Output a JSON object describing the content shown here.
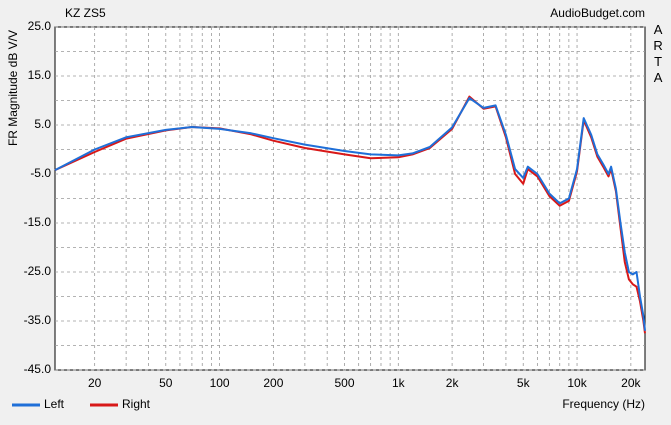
{
  "chart_data": {
    "type": "line",
    "title": "KZ ZS5",
    "source": "AudioBudget.com",
    "brand": "ARTA",
    "y_label": "FR Magnitude dB V/V",
    "x_label": "Frequency (Hz)",
    "log_x": true,
    "grid": true,
    "xlim": [
      12,
      24000
    ],
    "ylim": [
      -45,
      25
    ],
    "xticks": [
      20,
      50,
      100,
      200,
      500,
      {
        "value": 1000,
        "label": "1k"
      },
      {
        "value": 2000,
        "label": "2k"
      },
      {
        "value": 5000,
        "label": "5k"
      },
      {
        "value": 10000,
        "label": "10k"
      },
      {
        "value": 20000,
        "label": "20k"
      }
    ],
    "xminorticks": [
      30,
      40,
      60,
      70,
      80,
      90,
      300,
      400,
      600,
      700,
      800,
      900,
      3000,
      4000,
      6000,
      7000,
      8000,
      9000
    ],
    "yticks": [
      {
        "value": 25,
        "label": "25.0"
      },
      {
        "value": 15,
        "label": "15.0"
      },
      {
        "value": 5,
        "label": "5.0"
      },
      {
        "value": -5,
        "label": "-5.0"
      },
      {
        "value": -15,
        "label": "-15.0"
      },
      {
        "value": -25,
        "label": "-25.0"
      },
      {
        "value": -35,
        "label": "-35.0"
      },
      {
        "value": -45,
        "label": "-45.0"
      }
    ],
    "yminorticks": [
      20,
      10,
      0,
      -10,
      -20,
      -30,
      -40
    ],
    "x": [
      12,
      20,
      30,
      50,
      70,
      100,
      150,
      200,
      300,
      500,
      700,
      1000,
      1200,
      1500,
      2000,
      2500,
      3000,
      3500,
      4000,
      4500,
      5000,
      5300,
      6000,
      7000,
      8000,
      9000,
      10000,
      10900,
      12000,
      13000,
      14000,
      15000,
      15500,
      16500,
      17500,
      18500,
      19500,
      20500,
      21500,
      22500,
      23500,
      24000
    ],
    "series": [
      {
        "name": "Left",
        "color": "#1f6fd8",
        "values": [
          -4.2,
          0,
          2.5,
          4.0,
          4.6,
          4.2,
          3.3,
          2.3,
          1.0,
          -0.3,
          -1.0,
          -1.2,
          -0.8,
          0.5,
          4.5,
          10.5,
          8.5,
          9.0,
          3.0,
          -4.0,
          -5.8,
          -3.5,
          -5.0,
          -9.0,
          -11.0,
          -10.0,
          -4.0,
          6.4,
          3.0,
          -1.0,
          -3.0,
          -5.0,
          -3.5,
          -8.0,
          -15.0,
          -21.0,
          -25.0,
          -25.5,
          -25.0,
          -30.0,
          -34.0,
          -37.0
        ]
      },
      {
        "name": "Right",
        "color": "#d81818",
        "values": [
          -4.2,
          -0.5,
          2.2,
          3.9,
          4.6,
          4.3,
          3.1,
          1.8,
          0.3,
          -1.0,
          -1.8,
          -1.6,
          -1.0,
          0.3,
          4.2,
          10.8,
          8.3,
          8.8,
          2.5,
          -5.0,
          -7.0,
          -4.0,
          -5.5,
          -9.5,
          -11.5,
          -10.5,
          -4.5,
          6.0,
          2.5,
          -1.5,
          -3.5,
          -5.5,
          -4.0,
          -8.5,
          -16.0,
          -23.0,
          -26.5,
          -27.5,
          -28.0,
          -31.0,
          -35.0,
          -37.5
        ]
      }
    ]
  }
}
